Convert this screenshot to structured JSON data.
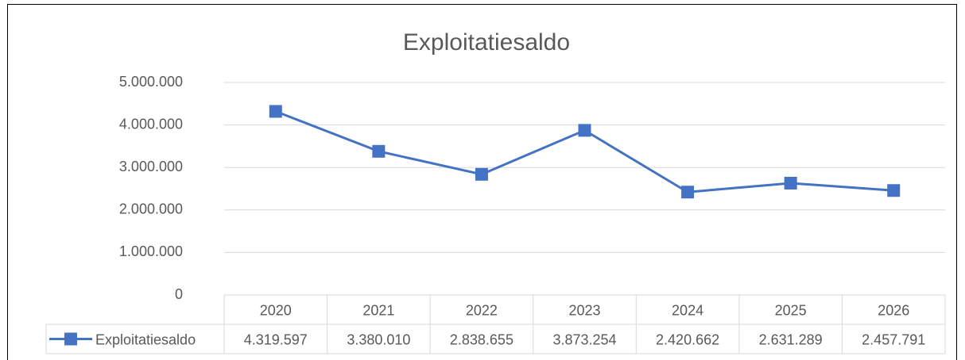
{
  "chart_data": {
    "type": "line",
    "title": "Exploitatiesaldo",
    "categories": [
      "2020",
      "2021",
      "2022",
      "2023",
      "2024",
      "2025",
      "2026"
    ],
    "series": [
      {
        "name": "Exploitatiesaldo",
        "color": "#4472c4",
        "values": [
          4319597,
          3380010,
          2838655,
          3873254,
          2420662,
          2631289,
          2457791
        ],
        "value_labels": [
          "4.319.597",
          "3.380.010",
          "2.838.655",
          "3.873.254",
          "2.420.662",
          "2.631.289",
          "2.457.791"
        ]
      }
    ],
    "ylim": [
      0,
      5000000
    ],
    "yticks": [
      0,
      {
        "value": 1000000,
        "label": "1.000.000"
      },
      {
        "value": 2000000,
        "label": "2.000.000"
      },
      {
        "value": 3000000,
        "label": "3.000.000"
      },
      {
        "value": 4000000,
        "label": "4.000.000"
      },
      {
        "value": 5000000,
        "label": "5.000.000"
      }
    ],
    "grid": true
  }
}
